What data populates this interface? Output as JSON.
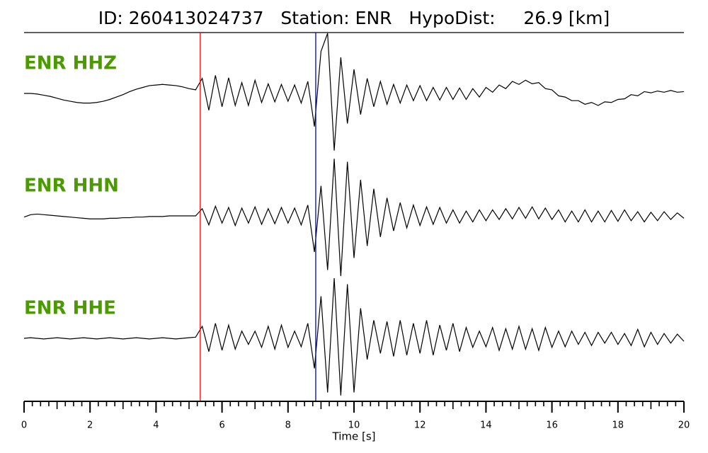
{
  "chart_data": {
    "type": "seismogram",
    "title": "ID: 260413024737   Station: ENR   HypoDist:     26.9 [km]",
    "xlabel": "Time [s]",
    "xlim": [
      0,
      20
    ],
    "xticks": [
      0,
      2,
      4,
      6,
      8,
      10,
      12,
      14,
      16,
      18,
      20
    ],
    "mid_tick_step": 1,
    "minor_tick_step": 0.25,
    "amplitude_lim": [
      -1,
      1
    ],
    "label_color": "#4a9a00",
    "picks": [
      {
        "x": 5.34,
        "color": "#ff0000"
      },
      {
        "x": 8.84,
        "color": "#0000cc"
      }
    ],
    "x": [
      0,
      0.2,
      0.4,
      0.6,
      0.8,
      1,
      1.2,
      1.4,
      1.6,
      1.8,
      2,
      2.2,
      2.4,
      2.6,
      2.8,
      3,
      3.2,
      3.4,
      3.6,
      3.8,
      4,
      4.2,
      4.4,
      4.6,
      4.8,
      5,
      5.2,
      5.4,
      5.6,
      5.8,
      6,
      6.2,
      6.4,
      6.6,
      6.8,
      7,
      7.2,
      7.4,
      7.6,
      7.8,
      8,
      8.2,
      8.4,
      8.6,
      8.8,
      9,
      9.2,
      9.4,
      9.6,
      9.8,
      10,
      10.2,
      10.4,
      10.6,
      10.8,
      11,
      11.2,
      11.4,
      11.6,
      11.8,
      12,
      12.2,
      12.4,
      12.6,
      12.8,
      13,
      13.2,
      13.4,
      13.6,
      13.8,
      14,
      14.2,
      14.4,
      14.6,
      14.8,
      15,
      15.2,
      15.4,
      15.6,
      15.8,
      16,
      16.2,
      16.4,
      16.6,
      16.8,
      17,
      17.2,
      17.4,
      17.6,
      17.8,
      18,
      18.2,
      18.4,
      18.6,
      18.8,
      19,
      19.2,
      19.4,
      19.6,
      19.8,
      20
    ],
    "series": [
      {
        "name": "ENR HHZ",
        "color": "#000000",
        "values": [
          0,
          0,
          -0.01,
          -0.03,
          -0.05,
          -0.08,
          -0.11,
          -0.13,
          -0.15,
          -0.16,
          -0.16,
          -0.15,
          -0.13,
          -0.1,
          -0.06,
          -0.02,
          0.03,
          0.07,
          0.1,
          0.13,
          0.14,
          0.15,
          0.14,
          0.13,
          0.11,
          0.08,
          0.06,
          0.25,
          -0.28,
          0.3,
          -0.22,
          0.26,
          -0.2,
          0.18,
          -0.2,
          0.22,
          -0.15,
          0.16,
          -0.14,
          0.15,
          -0.13,
          0.14,
          -0.16,
          0.2,
          -0.55,
          0.7,
          1.0,
          -0.95,
          0.6,
          -0.5,
          0.4,
          -0.35,
          0.25,
          -0.22,
          0.2,
          -0.18,
          0.15,
          -0.16,
          0.14,
          -0.12,
          0.13,
          -0.12,
          0.1,
          -0.11,
          0.1,
          -0.1,
          0.09,
          -0.1,
          0.08,
          -0.06,
          0.1,
          0.02,
          0.14,
          0.08,
          0.2,
          0.15,
          0.22,
          0.16,
          0.18,
          0.08,
          0.06,
          -0.04,
          -0.06,
          -0.12,
          -0.12,
          -0.18,
          -0.15,
          -0.2,
          -0.14,
          -0.15,
          -0.1,
          -0.09,
          -0.02,
          -0.04,
          0.03,
          0.01,
          0.04,
          0.02,
          0.05,
          0.02,
          0.03
        ]
      },
      {
        "name": "ENR HHN",
        "color": "#000000",
        "values": [
          -0.02,
          0.02,
          0.03,
          0.02,
          0.01,
          0,
          -0.01,
          -0.02,
          -0.03,
          -0.04,
          -0.05,
          -0.05,
          -0.05,
          -0.04,
          -0.04,
          -0.03,
          -0.03,
          -0.02,
          -0.02,
          -0.01,
          -0.01,
          -0.01,
          0,
          0,
          0,
          0,
          0,
          0.12,
          -0.15,
          0.16,
          -0.12,
          0.14,
          -0.16,
          0.13,
          -0.12,
          0.15,
          -0.14,
          0.12,
          -0.13,
          0.14,
          -0.12,
          0.13,
          -0.15,
          0.18,
          -0.6,
          0.5,
          -0.9,
          0.95,
          -1.0,
          0.9,
          -0.7,
          0.6,
          -0.5,
          0.45,
          -0.35,
          0.3,
          -0.25,
          0.22,
          -0.2,
          0.18,
          -0.16,
          0.15,
          -0.14,
          0.14,
          -0.12,
          0.1,
          -0.12,
          0.08,
          -0.1,
          0.1,
          -0.08,
          0.1,
          -0.06,
          0.12,
          -0.05,
          0.14,
          -0.04,
          0.15,
          -0.05,
          0.13,
          -0.06,
          0.1,
          -0.1,
          0.08,
          -0.1,
          0.1,
          -0.1,
          0.08,
          -0.1,
          0.09,
          -0.09,
          0.1,
          -0.08,
          0.07,
          -0.1,
          0.06,
          -0.08,
          0.07,
          -0.06,
          0.05,
          -0.04
        ]
      },
      {
        "name": "ENR HHE",
        "color": "#000000",
        "values": [
          0,
          0.01,
          0,
          -0.01,
          0,
          0.01,
          0,
          -0.01,
          0,
          0.01,
          0,
          -0.01,
          0,
          0.01,
          0,
          -0.01,
          0,
          0.01,
          0,
          -0.01,
          0,
          0.01,
          0,
          -0.01,
          0,
          0.01,
          0.02,
          0.2,
          -0.22,
          0.25,
          -0.2,
          0.22,
          -0.18,
          0.12,
          -0.1,
          0.12,
          -0.15,
          0.2,
          -0.18,
          0.22,
          -0.15,
          0.12,
          -0.14,
          0.25,
          -0.5,
          0.7,
          -0.9,
          1.0,
          -0.95,
          0.9,
          -0.9,
          0.5,
          -0.35,
          0.3,
          -0.25,
          0.28,
          -0.3,
          0.3,
          -0.28,
          0.25,
          -0.25,
          0.3,
          -0.28,
          0.22,
          -0.2,
          0.25,
          -0.22,
          0.18,
          -0.15,
          0.12,
          -0.14,
          0.18,
          -0.2,
          0.16,
          -0.18,
          0.2,
          -0.18,
          0.16,
          -0.2,
          0.18,
          -0.15,
          0.12,
          -0.14,
          0.12,
          -0.1,
          0.1,
          -0.12,
          0.1,
          -0.08,
          0.1,
          -0.1,
          0.08,
          -0.12,
          0.15,
          -0.14,
          0.1,
          -0.1,
          0.08,
          -0.08,
          0.07,
          -0.05
        ]
      }
    ]
  }
}
